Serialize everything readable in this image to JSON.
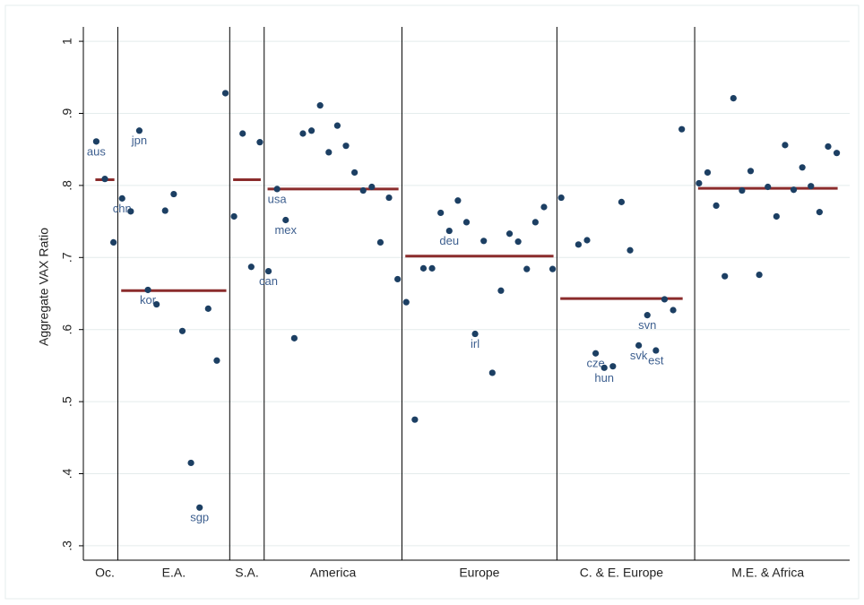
{
  "chart_data": {
    "type": "scatter",
    "ylabel": "Aggregate VAX Ratio",
    "ylim": [
      0.28,
      1.02
    ],
    "yticks": [
      {
        "value": 0.3,
        "label": ".3"
      },
      {
        "value": 0.4,
        "label": ".4"
      },
      {
        "value": 0.5,
        "label": ".5"
      },
      {
        "value": 0.6,
        "label": ".6"
      },
      {
        "value": 0.7,
        "label": ".7"
      },
      {
        "value": 0.8,
        "label": ".8"
      },
      {
        "value": 0.9,
        "label": ".9"
      },
      1
    ],
    "xlim": [
      -0.5,
      88.5
    ],
    "grid": true,
    "point_color": "#1c3f63",
    "label_color": "#3d5f8f",
    "mean_color": "#8b2c2c",
    "dividers": [
      3.5,
      16.5,
      20.5,
      36.5,
      54.5,
      70.5
    ],
    "groups": [
      {
        "label": "Oc.",
        "x": [
          1,
          3
        ],
        "mean": 0.808
      },
      {
        "label": "E.A.",
        "x": [
          4,
          16
        ],
        "mean": 0.654
      },
      {
        "label": "S.A.",
        "x": [
          17,
          20
        ],
        "mean": 0.808
      },
      {
        "label": "America",
        "x": [
          21,
          36
        ],
        "mean": 0.795
      },
      {
        "label": "Europe",
        "x": [
          37,
          54
        ],
        "mean": 0.702
      },
      {
        "label": "C. & E. Europe",
        "x": [
          55,
          69
        ],
        "mean": 0.643
      },
      {
        "label": "M.E. & Africa",
        "x": [
          71,
          87
        ],
        "mean": 0.796
      }
    ],
    "x": [
      1,
      2,
      3,
      4,
      5,
      6,
      7,
      8,
      9,
      10,
      11,
      12,
      13,
      14,
      15,
      16,
      17,
      18,
      19,
      20,
      21,
      22,
      23,
      24,
      25,
      26,
      27,
      28,
      29,
      30,
      31,
      32,
      33,
      34,
      35,
      36,
      37,
      38,
      39,
      40,
      41,
      42,
      43,
      44,
      45,
      46,
      47,
      48,
      49,
      50,
      51,
      52,
      53,
      54,
      55,
      57,
      58,
      59,
      60,
      61,
      62,
      63,
      64,
      65,
      66,
      67,
      68,
      69,
      71,
      72,
      73,
      74,
      75,
      76,
      77,
      78,
      79,
      80,
      81,
      82,
      83,
      84,
      85,
      86,
      87
    ],
    "values": [
      0.861,
      0.809,
      0.721,
      0.782,
      0.764,
      0.876,
      0.655,
      0.635,
      0.765,
      0.788,
      0.598,
      0.415,
      0.353,
      0.629,
      0.557,
      0.928,
      0.757,
      0.872,
      0.687,
      0.86,
      0.681,
      0.795,
      0.752,
      0.588,
      0.872,
      0.876,
      0.911,
      0.846,
      0.883,
      0.855,
      0.818,
      0.793,
      0.798,
      0.721,
      0.783,
      0.67,
      0.638,
      0.475,
      0.685,
      0.685,
      0.762,
      0.737,
      0.779,
      0.749,
      0.594,
      0.723,
      0.54,
      0.654,
      0.733,
      0.722,
      0.684,
      0.749,
      0.77,
      0.684,
      0.783,
      0.718,
      0.724,
      0.567,
      0.547,
      0.549,
      0.777,
      0.71,
      0.578,
      0.62,
      0.571,
      0.642,
      0.627,
      0.878,
      0.803,
      0.818,
      0.772,
      0.674,
      0.921,
      0.793,
      0.82,
      0.676,
      0.798,
      0.757,
      0.856,
      0.794,
      0.825,
      0.799,
      0.763,
      0.854,
      0.845
    ],
    "point_labels": [
      "aus",
      null,
      null,
      "chn",
      null,
      "jpn",
      "kor",
      null,
      null,
      null,
      null,
      null,
      "sgp",
      null,
      null,
      null,
      null,
      null,
      null,
      null,
      "can",
      "usa",
      "mex",
      null,
      null,
      null,
      null,
      null,
      null,
      null,
      null,
      null,
      null,
      null,
      null,
      null,
      null,
      null,
      null,
      null,
      null,
      "deu",
      null,
      null,
      "irl",
      null,
      null,
      null,
      null,
      null,
      null,
      null,
      null,
      null,
      null,
      null,
      null,
      "cze",
      "hun",
      null,
      null,
      null,
      "svk",
      "svn",
      "est",
      null,
      null,
      null,
      null,
      null,
      null,
      null,
      null,
      null,
      null,
      null,
      null,
      null,
      null,
      null,
      null,
      null,
      null,
      null,
      null
    ]
  }
}
